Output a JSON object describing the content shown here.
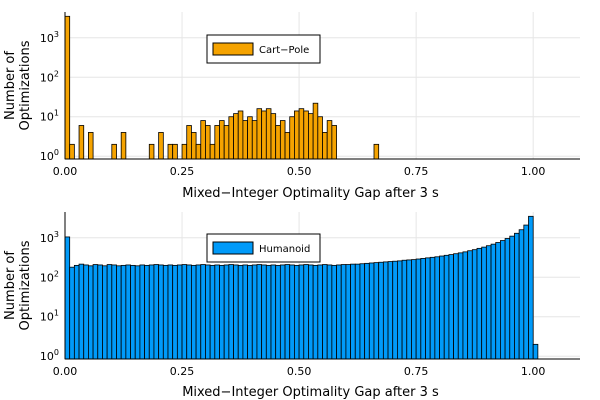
{
  "chart_data": [
    {
      "type": "bar",
      "subtype": "histogram",
      "xlabel": "Mixed−Integer Optimality Gap after 3 s",
      "ylabel_lines": [
        "Number of",
        "Optimizations"
      ],
      "xlim": [
        0,
        1.1
      ],
      "ylim": [
        0.85,
        4500
      ],
      "yscale": "log10",
      "xticks": [
        0,
        0.25,
        0.5,
        0.75,
        1.0
      ],
      "xtick_labels": [
        "0.00",
        "0.25",
        "0.50",
        "0.75",
        "1.00"
      ],
      "yticks": [
        1,
        10,
        100,
        1000
      ],
      "ytick_bases": [
        "10",
        "10",
        "10",
        "10"
      ],
      "ytick_exponents": [
        "0",
        "1",
        "2",
        "3"
      ],
      "grid": true,
      "legend_position": "top-center",
      "bin_width": 0.01,
      "series": [
        {
          "name": "Cart−Pole",
          "color": "#f5a300",
          "bins": [
            [
              0.0,
              3500
            ],
            [
              0.01,
              2
            ],
            [
              0.03,
              6
            ],
            [
              0.05,
              4
            ],
            [
              0.1,
              2
            ],
            [
              0.12,
              4
            ],
            [
              0.18,
              2
            ],
            [
              0.2,
              4
            ],
            [
              0.22,
              2
            ],
            [
              0.23,
              2
            ],
            [
              0.25,
              2
            ],
            [
              0.26,
              6
            ],
            [
              0.27,
              4
            ],
            [
              0.28,
              2
            ],
            [
              0.29,
              8
            ],
            [
              0.3,
              6
            ],
            [
              0.31,
              2
            ],
            [
              0.32,
              6
            ],
            [
              0.33,
              8
            ],
            [
              0.34,
              6
            ],
            [
              0.35,
              10
            ],
            [
              0.36,
              12
            ],
            [
              0.37,
              14
            ],
            [
              0.38,
              8
            ],
            [
              0.39,
              10
            ],
            [
              0.4,
              8
            ],
            [
              0.41,
              16
            ],
            [
              0.42,
              14
            ],
            [
              0.43,
              16
            ],
            [
              0.44,
              12
            ],
            [
              0.45,
              6
            ],
            [
              0.46,
              8
            ],
            [
              0.47,
              4
            ],
            [
              0.48,
              10
            ],
            [
              0.49,
              14
            ],
            [
              0.5,
              16
            ],
            [
              0.51,
              14
            ],
            [
              0.52,
              12
            ],
            [
              0.53,
              22
            ],
            [
              0.54,
              10
            ],
            [
              0.55,
              4
            ],
            [
              0.56,
              8
            ],
            [
              0.57,
              6
            ],
            [
              0.66,
              2
            ]
          ]
        }
      ]
    },
    {
      "type": "bar",
      "subtype": "histogram",
      "xlabel": "Mixed−Integer Optimality Gap after 3 s",
      "ylabel_lines": [
        "Number of",
        "Optimizations"
      ],
      "xlim": [
        0,
        1.1
      ],
      "ylim": [
        0.85,
        4500
      ],
      "yscale": "log10",
      "xticks": [
        0,
        0.25,
        0.5,
        0.75,
        1.0
      ],
      "xtick_labels": [
        "0.00",
        "0.25",
        "0.50",
        "0.75",
        "1.00"
      ],
      "yticks": [
        1,
        10,
        100,
        1000
      ],
      "ytick_bases": [
        "10",
        "10",
        "10",
        "10"
      ],
      "ytick_exponents": [
        "0",
        "1",
        "2",
        "3"
      ],
      "grid": true,
      "legend_position": "top-center",
      "bin_width": 0.01,
      "series": [
        {
          "name": "Humanoid",
          "color": "#009af9",
          "bins": [
            [
              0.0,
              1050
            ],
            [
              0.01,
              180
            ],
            [
              0.02,
              200
            ],
            [
              0.03,
              215
            ],
            [
              0.04,
              205
            ],
            [
              0.05,
              195
            ],
            [
              0.06,
              210
            ],
            [
              0.07,
              205
            ],
            [
              0.08,
              195
            ],
            [
              0.09,
              210
            ],
            [
              0.1,
              205
            ],
            [
              0.11,
              195
            ],
            [
              0.12,
              200
            ],
            [
              0.13,
              205
            ],
            [
              0.14,
              200
            ],
            [
              0.15,
              195
            ],
            [
              0.16,
              205
            ],
            [
              0.17,
              200
            ],
            [
              0.18,
              205
            ],
            [
              0.19,
              210
            ],
            [
              0.2,
              205
            ],
            [
              0.21,
              200
            ],
            [
              0.22,
              205
            ],
            [
              0.23,
              200
            ],
            [
              0.24,
              205
            ],
            [
              0.25,
              210
            ],
            [
              0.26,
              205
            ],
            [
              0.27,
              200
            ],
            [
              0.28,
              205
            ],
            [
              0.29,
              210
            ],
            [
              0.3,
              205
            ],
            [
              0.31,
              200
            ],
            [
              0.32,
              205
            ],
            [
              0.33,
              200
            ],
            [
              0.34,
              205
            ],
            [
              0.35,
              210
            ],
            [
              0.36,
              205
            ],
            [
              0.37,
              200
            ],
            [
              0.38,
              205
            ],
            [
              0.39,
              200
            ],
            [
              0.4,
              205
            ],
            [
              0.41,
              210
            ],
            [
              0.42,
              205
            ],
            [
              0.43,
              200
            ],
            [
              0.44,
              205
            ],
            [
              0.45,
              200
            ],
            [
              0.46,
              205
            ],
            [
              0.47,
              210
            ],
            [
              0.48,
              205
            ],
            [
              0.49,
              200
            ],
            [
              0.5,
              205
            ],
            [
              0.51,
              210
            ],
            [
              0.52,
              205
            ],
            [
              0.53,
              200
            ],
            [
              0.54,
              205
            ],
            [
              0.55,
              210
            ],
            [
              0.56,
              205
            ],
            [
              0.57,
              200
            ],
            [
              0.58,
              205
            ],
            [
              0.59,
              210
            ],
            [
              0.6,
              210
            ],
            [
              0.61,
              215
            ],
            [
              0.62,
              215
            ],
            [
              0.63,
              220
            ],
            [
              0.64,
              225
            ],
            [
              0.65,
              230
            ],
            [
              0.66,
              235
            ],
            [
              0.67,
              240
            ],
            [
              0.68,
              245
            ],
            [
              0.69,
              250
            ],
            [
              0.7,
              255
            ],
            [
              0.71,
              260
            ],
            [
              0.72,
              270
            ],
            [
              0.73,
              275
            ],
            [
              0.74,
              280
            ],
            [
              0.75,
              290
            ],
            [
              0.76,
              300
            ],
            [
              0.77,
              310
            ],
            [
              0.78,
              320
            ],
            [
              0.79,
              330
            ],
            [
              0.8,
              345
            ],
            [
              0.81,
              360
            ],
            [
              0.82,
              375
            ],
            [
              0.83,
              395
            ],
            [
              0.84,
              415
            ],
            [
              0.85,
              440
            ],
            [
              0.86,
              470
            ],
            [
              0.87,
              500
            ],
            [
              0.88,
              540
            ],
            [
              0.89,
              580
            ],
            [
              0.9,
              630
            ],
            [
              0.91,
              690
            ],
            [
              0.92,
              760
            ],
            [
              0.93,
              850
            ],
            [
              0.94,
              960
            ],
            [
              0.95,
              1100
            ],
            [
              0.96,
              1300
            ],
            [
              0.97,
              1600
            ],
            [
              0.98,
              2100
            ],
            [
              0.99,
              3500
            ],
            [
              1.0,
              2
            ]
          ]
        }
      ]
    }
  ]
}
